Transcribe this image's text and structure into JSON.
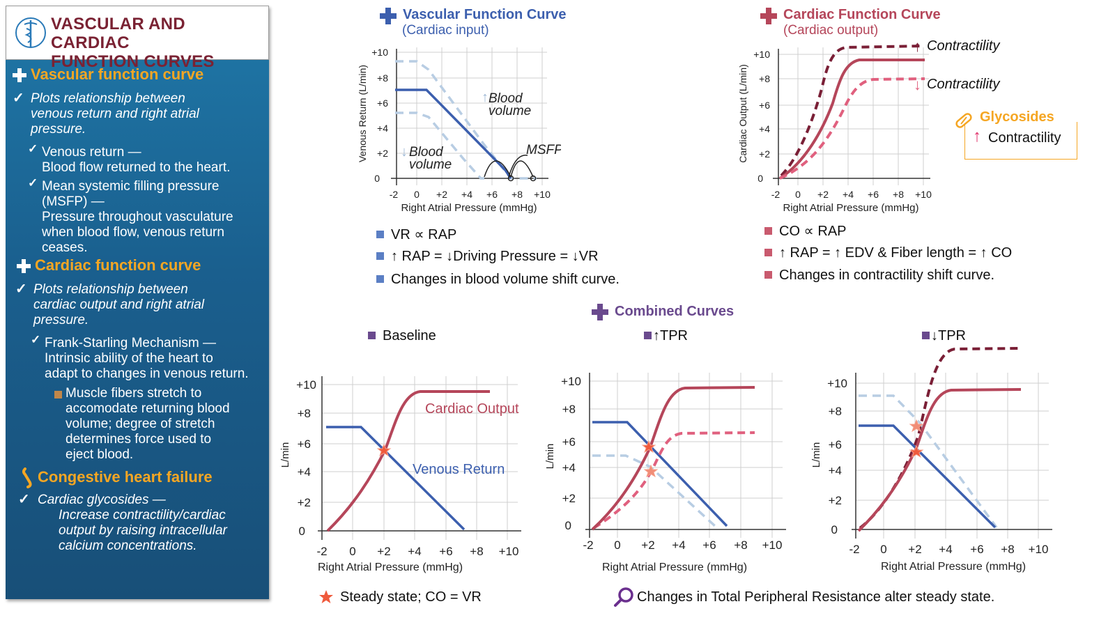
{
  "sidebar": {
    "title_line1": "VASCULAR AND CARDIAC",
    "title_line2": "FUNCTION CURVES",
    "vascular": {
      "heading": "Vascular function curve",
      "point1": [
        "Plots relationship between",
        "venous return and right atrial",
        "pressure."
      ],
      "sub1": [
        "Venous return —",
        "Blood flow returned to the heart."
      ],
      "sub2": [
        "Mean systemic filling pressure",
        "(MSFP)  —",
        "Pressure throughout vasculature",
        "when blood flow, venous return",
        "ceases."
      ]
    },
    "cardiac": {
      "heading": "Cardiac function curve",
      "point1": [
        "Plots relationship between",
        "cardiac output and right atrial",
        "pressure."
      ],
      "sub1": [
        "Frank-Starling Mechanism —",
        "Intrinsic ability of the heart to",
        "adapt to changes in venous return."
      ],
      "sub2": [
        "Muscle fibers stretch to",
        "accomodate returning blood",
        "volume; degree of stretch",
        "determines force used to",
        "eject blood."
      ]
    },
    "chf": {
      "heading": "Congestive heart failure",
      "point1": [
        "Cardiac glycosides —",
        "Increase contractility/cardiac",
        "output by raising intracellular",
        "calcium concentrations."
      ]
    }
  },
  "vascular_panel": {
    "title": "Vascular Function Curve",
    "subtitle": "(Cardiac input)",
    "ylabel": "Venous Return (L/min)",
    "xlabel": "Right Atrial Pressure (mmHg)",
    "yticks": [
      "+10",
      "+8",
      "+6",
      "+4",
      "+2",
      "0"
    ],
    "xticks": [
      "-2",
      "0",
      "+2",
      "+4",
      "+6",
      "+8",
      "+10"
    ],
    "label_up": [
      "Blood",
      "volume"
    ],
    "label_down": [
      "Blood",
      "volume"
    ],
    "label_msfp": "MSFP",
    "bullets": [
      "VR ∝ RAP",
      "↑ RAP = ↓Driving Pressure = ↓VR",
      "Changes in blood volume shift curve."
    ]
  },
  "cardiac_panel": {
    "title": "Cardiac Function Curve",
    "subtitle": "(Cardiac output)",
    "ylabel": "Cardiac Output (L/min)",
    "xlabel": "Right Atrial Pressure (mmHg)",
    "yticks": [
      "+10",
      "+8",
      "+6",
      "+4",
      "+2",
      "0"
    ],
    "xticks": [
      "-2",
      "0",
      "+2",
      "+4",
      "+6",
      "+8",
      "+10"
    ],
    "label_up": "Contractility",
    "label_down": "Contractility",
    "glycosides_title": "Glycosides",
    "glycosides_text": "Contractility",
    "bullets": [
      "CO ∝ RAP",
      "↑ RAP = ↑ EDV & Fiber length = ↑ CO",
      "Changes in contractility shift curve."
    ]
  },
  "combined": {
    "title": "Combined Curves",
    "panels": [
      {
        "label": "Baseline",
        "ylabel": "L/min",
        "xlabel": "Right Atrial Pressure (mmHg)"
      },
      {
        "label": "↑TPR",
        "ylabel": "L/min",
        "xlabel": "Right Atrial Pressure (mmHg)"
      },
      {
        "label": "↓TPR",
        "ylabel": "L/min",
        "xlabel": "Right Atrial Pressure (mmHg)"
      }
    ],
    "yticks": [
      "+10",
      "+8",
      "+6",
      "+4",
      "+2",
      "0"
    ],
    "xticks": [
      "-2",
      "0",
      "+2",
      "+4",
      "+6",
      "+8",
      "+10"
    ],
    "label_co": "Cardiac Output",
    "label_vr": "Venous Return",
    "footer_left": "Steady state; CO = VR",
    "footer_right": "Changes in Total Peripheral Resistance alter steady state."
  },
  "colors": {
    "vascular_blue": "#3c5fae",
    "light_blue": "#b8cde3",
    "cardiac_red": "#b5465a",
    "dark_red": "#7a1f36",
    "pink_dash": "#e0607e",
    "orange": "#f5a623",
    "purple": "#6a4a8e",
    "star": "#ef5a3c"
  }
}
